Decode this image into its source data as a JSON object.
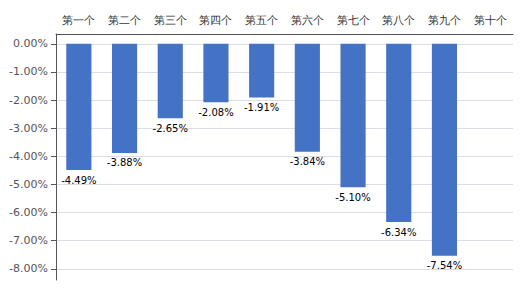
{
  "chart_data": {
    "type": "bar",
    "categories": [
      "第一个",
      "第二个",
      "第三个",
      "第四个",
      "第五个",
      "第六个",
      "第七个",
      "第八个",
      "第九个",
      "第十个"
    ],
    "values": [
      -4.49,
      -3.88,
      -2.65,
      -2.08,
      -1.91,
      -3.84,
      -5.1,
      -6.34,
      -7.54,
      0.0
    ],
    "value_labels": [
      "-4.49%",
      "-3.88%",
      "-2.65%",
      "-2.08%",
      "-1.91%",
      "-3.84%",
      "-5.10%",
      "-6.34%",
      "-7.54%",
      null
    ],
    "color": "#4472C4",
    "ylim": [
      -8.4,
      0.35
    ],
    "yticks": [
      {
        "value": 0.0,
        "label": "0.00%"
      },
      {
        "value": -1.0,
        "label": "-1.00%"
      },
      {
        "value": -2.0,
        "label": "-2.00%"
      },
      {
        "value": -3.0,
        "label": "-3.00%"
      },
      {
        "value": -4.0,
        "label": "-4.00%"
      },
      {
        "value": -5.0,
        "label": "-5.00%"
      },
      {
        "value": -6.0,
        "label": "-6.00%"
      },
      {
        "value": -7.0,
        "label": "-7.00%"
      },
      {
        "value": -8.0,
        "label": "-8.00%"
      }
    ],
    "grid": true
  }
}
